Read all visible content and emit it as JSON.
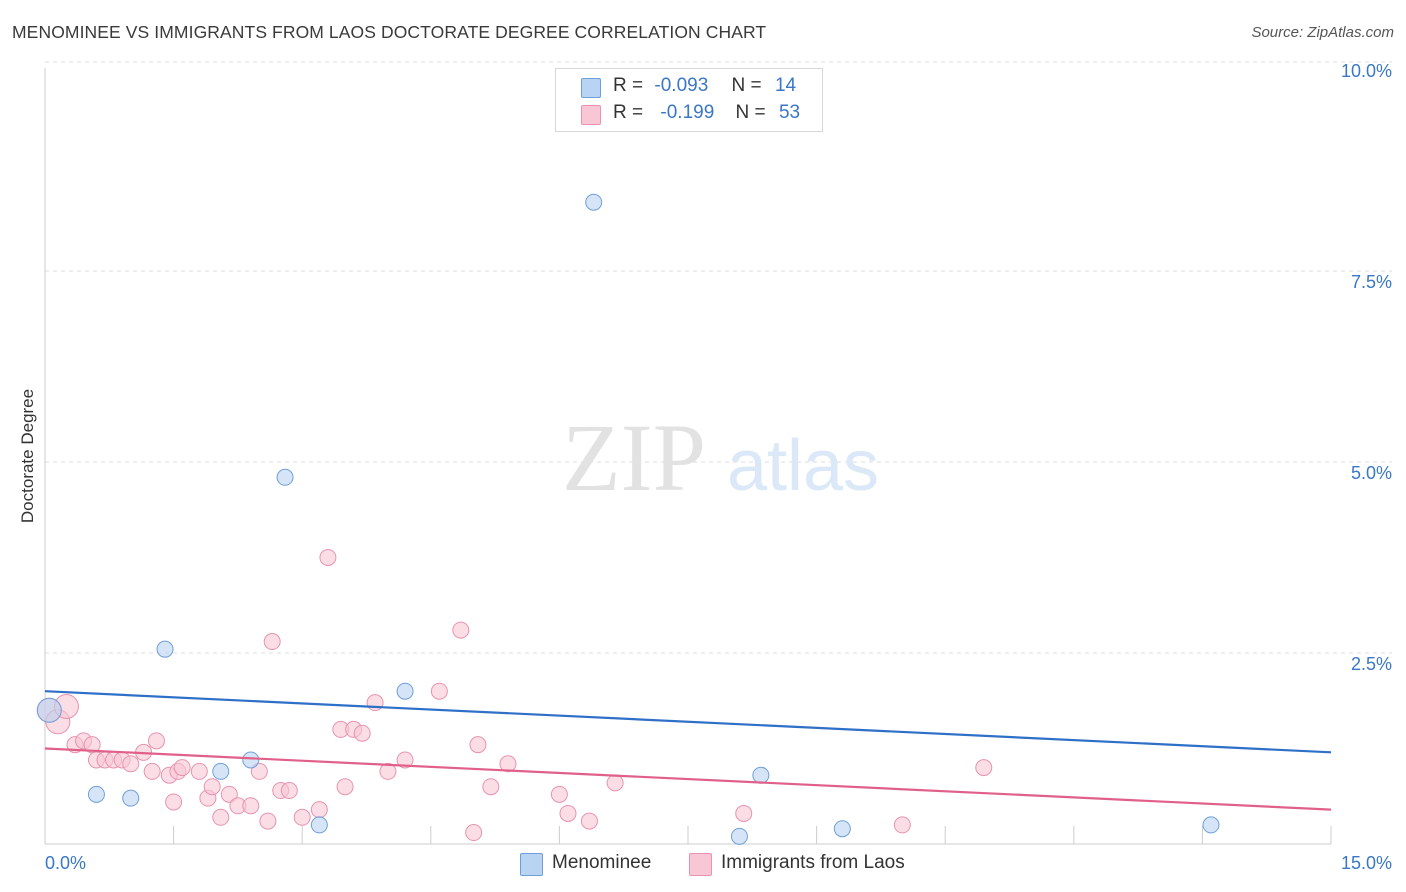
{
  "title": "MENOMINEE VS IMMIGRANTS FROM LAOS DOCTORATE DEGREE CORRELATION CHART",
  "source": "Source: ZipAtlas.com",
  "watermark": {
    "zip": "ZIP",
    "atlas": "atlas"
  },
  "legend": {
    "menominee": {
      "r_label": "R =",
      "r_value": "-0.093",
      "n_label": "N =",
      "n_value": "14"
    },
    "laos": {
      "r_label": "R =",
      "r_value": "-0.199",
      "n_label": "N =",
      "n_value": "53"
    }
  },
  "bottom_legend": {
    "menominee": "Menominee",
    "laos": "Immigrants from Laos"
  },
  "colors": {
    "menominee_fill": "#b9d3f2",
    "menominee_stroke": "#6f9fd8",
    "menominee_line": "#2e6fc8",
    "laos_fill": "#f8c6d5",
    "laos_stroke": "#e894ae",
    "laos_line": "#e0608a",
    "tick_label": "#3a77c7"
  },
  "chart_data": {
    "type": "scatter",
    "title": "MENOMINEE VS IMMIGRANTS FROM LAOS DOCTORATE DEGREE CORRELATION CHART",
    "xlabel": "",
    "ylabel": "Doctorate Degree",
    "xlim": [
      0,
      15
    ],
    "ylim": [
      0,
      10
    ],
    "x_tick_labels": [
      "0.0%",
      "15.0%"
    ],
    "y_ticks": [
      {
        "value": 2.5,
        "label": "2.5%"
      },
      {
        "value": 5.0,
        "label": "5.0%"
      },
      {
        "value": 7.5,
        "label": "7.5%"
      },
      {
        "value": 10.0,
        "label": "10.0%"
      }
    ],
    "grid": true,
    "series": [
      {
        "name": "Menominee",
        "points": [
          [
            0.05,
            1.75
          ],
          [
            0.6,
            0.65
          ],
          [
            1.0,
            0.6
          ],
          [
            1.4,
            2.55
          ],
          [
            2.05,
            0.95
          ],
          [
            2.4,
            1.1
          ],
          [
            2.8,
            4.8
          ],
          [
            3.2,
            0.25
          ],
          [
            4.2,
            2.0
          ],
          [
            6.4,
            8.4
          ],
          [
            8.1,
            0.1
          ],
          [
            8.35,
            0.9
          ],
          [
            9.3,
            0.2
          ],
          [
            13.6,
            0.25
          ]
        ],
        "trend": [
          [
            0,
            2.0
          ],
          [
            15,
            1.2
          ]
        ]
      },
      {
        "name": "Immigrants from Laos",
        "points": [
          [
            0.05,
            1.75
          ],
          [
            0.15,
            1.6
          ],
          [
            0.25,
            1.8
          ],
          [
            0.35,
            1.3
          ],
          [
            0.45,
            1.35
          ],
          [
            0.55,
            1.3
          ],
          [
            0.6,
            1.1
          ],
          [
            0.7,
            1.1
          ],
          [
            0.8,
            1.1
          ],
          [
            0.9,
            1.1
          ],
          [
            1.0,
            1.05
          ],
          [
            1.15,
            1.2
          ],
          [
            1.25,
            0.95
          ],
          [
            1.3,
            1.35
          ],
          [
            1.45,
            0.9
          ],
          [
            1.5,
            0.55
          ],
          [
            1.55,
            0.95
          ],
          [
            1.6,
            1.0
          ],
          [
            1.8,
            0.95
          ],
          [
            1.9,
            0.6
          ],
          [
            1.95,
            0.75
          ],
          [
            2.05,
            0.35
          ],
          [
            2.15,
            0.65
          ],
          [
            2.25,
            0.5
          ],
          [
            2.4,
            0.5
          ],
          [
            2.5,
            0.95
          ],
          [
            2.6,
            0.3
          ],
          [
            2.65,
            2.65
          ],
          [
            2.75,
            0.7
          ],
          [
            2.85,
            0.7
          ],
          [
            3.0,
            0.35
          ],
          [
            3.2,
            0.45
          ],
          [
            3.3,
            3.75
          ],
          [
            3.45,
            1.5
          ],
          [
            3.5,
            0.75
          ],
          [
            3.6,
            1.5
          ],
          [
            3.7,
            1.45
          ],
          [
            3.85,
            1.85
          ],
          [
            4.0,
            0.95
          ],
          [
            4.2,
            1.1
          ],
          [
            4.6,
            2.0
          ],
          [
            4.85,
            2.8
          ],
          [
            5.0,
            0.15
          ],
          [
            5.05,
            1.3
          ],
          [
            5.2,
            0.75
          ],
          [
            5.4,
            1.05
          ],
          [
            6.0,
            0.65
          ],
          [
            6.1,
            0.4
          ],
          [
            6.35,
            0.3
          ],
          [
            6.65,
            0.8
          ],
          [
            8.15,
            0.4
          ],
          [
            10.0,
            0.25
          ],
          [
            10.95,
            1.0
          ]
        ],
        "trend": [
          [
            0,
            1.25
          ],
          [
            15,
            0.45
          ]
        ]
      }
    ]
  }
}
